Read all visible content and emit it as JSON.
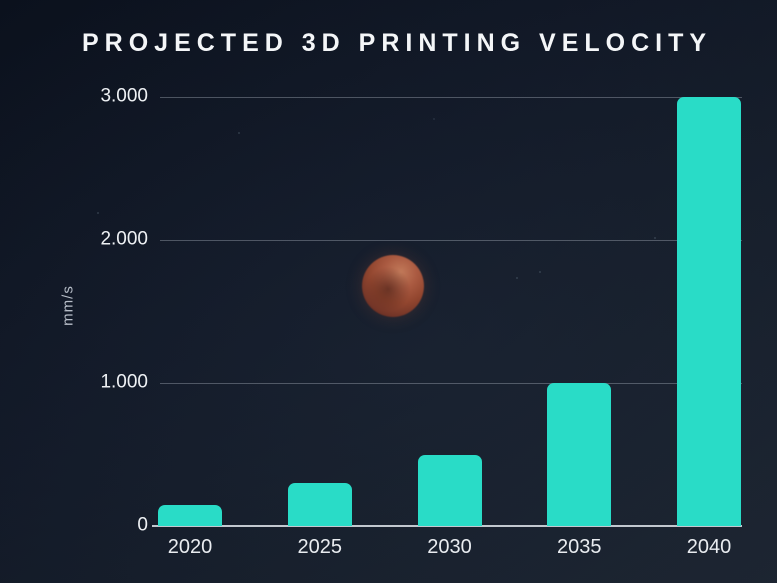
{
  "chart_data": {
    "type": "bar",
    "title": "PROJECTED 3D PRINTING VELOCITY",
    "categories": [
      "2020",
      "2025",
      "2030",
      "2035",
      "2040"
    ],
    "values": [
      150,
      300,
      500,
      1000,
      3000
    ],
    "xlabel": "",
    "ylabel": "mm/s",
    "ylim": [
      0,
      3000
    ],
    "yticks": [
      0,
      1000,
      2000,
      3000
    ],
    "ytick_labels": [
      "0",
      "1.000",
      "2.000",
      "3.000"
    ],
    "grid": true,
    "legend_position": "none",
    "colors": {
      "bar": "#29dcc7",
      "gridline": "rgba(190,198,210,0.35)",
      "axis_line": "#c2c8cf",
      "title_text": "#f4f6f8",
      "tick_text": "#eef1f4",
      "background_top": "#0b111d",
      "background_bottom": "#1c2430"
    }
  },
  "decor": {
    "moon": "red-blood-moon-photo",
    "starfield": "faint-stars"
  }
}
